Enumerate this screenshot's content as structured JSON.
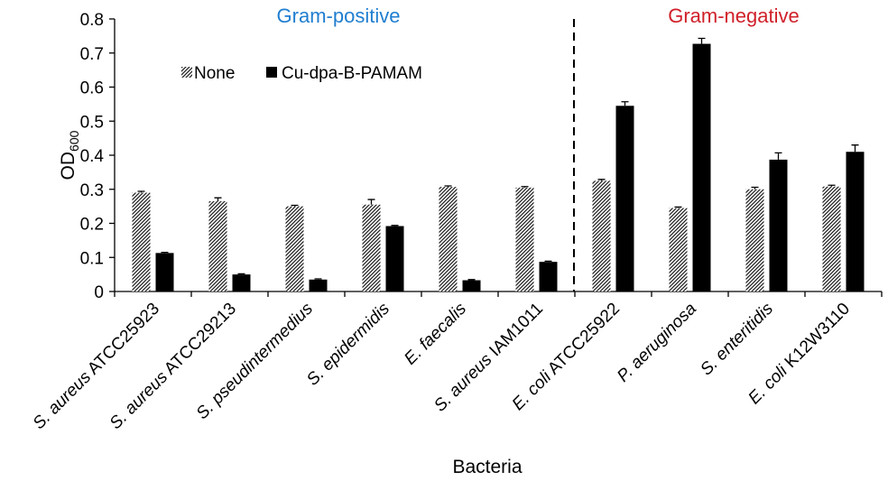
{
  "chart_data": {
    "type": "bar",
    "xlabel": "Bacteria",
    "ylabel": "OD",
    "ylabel_subscript": "600",
    "ylim": [
      0,
      0.8
    ],
    "yticks": [
      "0",
      "0.1",
      "0.2",
      "0.3",
      "0.4",
      "0.5",
      "0.6",
      "0.7",
      "0.8"
    ],
    "categories": [
      {
        "genus": "S.",
        "species": "aureus",
        "strain": "ATCC25923"
      },
      {
        "genus": "S.",
        "species": "aureus",
        "strain": "ATCC29213"
      },
      {
        "genus": "S.",
        "species": "pseudintermedius",
        "strain": ""
      },
      {
        "genus": "S.",
        "species": "epidermidis",
        "strain": ""
      },
      {
        "genus": "E.",
        "species": "faecalis",
        "strain": ""
      },
      {
        "genus": "S.",
        "species": "aureus",
        "strain": "IAM1011"
      },
      {
        "genus": "E.",
        "species": "coli",
        "strain": "ATCC25922"
      },
      {
        "genus": "P.",
        "species": "aeruginosa",
        "strain": ""
      },
      {
        "genus": "S.",
        "species": "enteritidis",
        "strain": ""
      },
      {
        "genus": "E.",
        "species": "coli",
        "strain": "K12W3110"
      }
    ],
    "series": [
      {
        "name": "None",
        "pattern": "hatched",
        "values": [
          0.29,
          0.265,
          0.25,
          0.255,
          0.307,
          0.305,
          0.325,
          0.245,
          0.3,
          0.308
        ],
        "errors": [
          0.004,
          0.01,
          0.003,
          0.015,
          0.003,
          0.003,
          0.004,
          0.003,
          0.006,
          0.004
        ]
      },
      {
        "name": "Cu-dpa-B-PAMAM",
        "pattern": "solid",
        "values": [
          0.113,
          0.05,
          0.035,
          0.192,
          0.033,
          0.087,
          0.545,
          0.727,
          0.387,
          0.41
        ],
        "errors": [
          0.002,
          0.002,
          0.002,
          0.002,
          0.002,
          0.002,
          0.012,
          0.016,
          0.02,
          0.02
        ]
      }
    ],
    "groups": [
      {
        "label": "Gram-positive",
        "color": "#1f7ed0"
      },
      {
        "label": "Gram-negative",
        "color": "#d0202a"
      }
    ],
    "divider_after_category_index": 5,
    "legend_position": "top-left"
  }
}
